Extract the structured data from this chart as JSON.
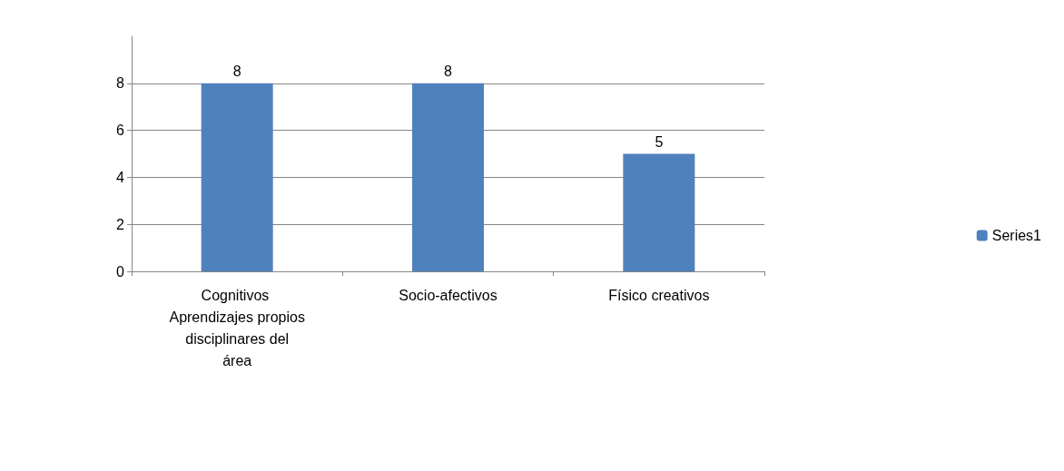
{
  "chart_data": {
    "type": "bar",
    "categories": [
      "Cognitivos Aprendizajes propios disciplinares del área",
      "Socio-afectivos",
      "Físico creativos"
    ],
    "series": [
      {
        "name": "Series1",
        "color": "#4f81bd",
        "values": [
          8,
          8,
          5
        ]
      }
    ],
    "ylim": [
      0,
      10
    ],
    "yticks": [
      0,
      2,
      4,
      6,
      8
    ],
    "grid": "y",
    "legend": "right",
    "data_labels": true
  }
}
